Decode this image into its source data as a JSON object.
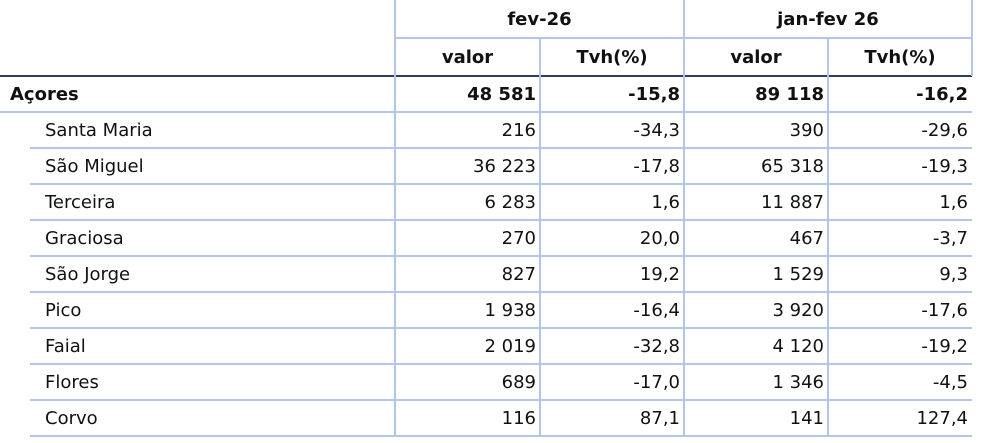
{
  "header": {
    "groups": [
      "fev-26",
      "jan-fev 26"
    ],
    "columns": [
      "valor",
      "Tvh(%)",
      "valor",
      "Tvh(%)"
    ]
  },
  "table": {
    "rows": [
      [
        "Açores",
        "48 581",
        "-15,8",
        "89 118",
        "-16,2"
      ],
      [
        "Santa Maria",
        "216",
        "-34,3",
        "390",
        "-29,6"
      ],
      [
        "São Miguel",
        "36 223",
        "-17,8",
        "65 318",
        "-19,3"
      ],
      [
        "Terceira",
        "6 283",
        "1,6",
        "11 887",
        "1,6"
      ],
      [
        "Graciosa",
        "270",
        "20,0",
        "467",
        "-3,7"
      ],
      [
        "São Jorge",
        "827",
        "19,2",
        "1 529",
        "9,3"
      ],
      [
        "Pico",
        "1 938",
        "-16,4",
        "3 920",
        "-17,6"
      ],
      [
        "Faial",
        "2 019",
        "-32,8",
        "4 120",
        "-19,2"
      ],
      [
        "Flores",
        "689",
        "-17,0",
        "1 346",
        "-4,5"
      ],
      [
        "Corvo",
        "116",
        "87,1",
        "141",
        "127,4"
      ]
    ]
  }
}
